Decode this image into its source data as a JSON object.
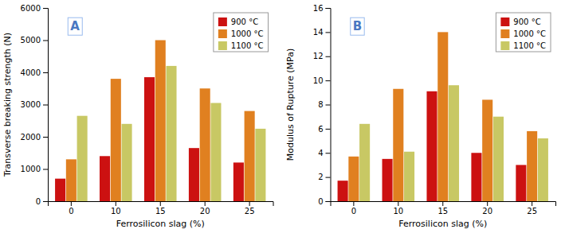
{
  "chart_data": [
    {
      "type": "bar",
      "categories": [
        0,
        10,
        15,
        20,
        25
      ],
      "series": [
        {
          "name": "900 °C",
          "color": "#cc1111",
          "values": [
            700,
            1400,
            3850,
            1650,
            1200
          ]
        },
        {
          "name": "1000 °C",
          "color": "#e08020",
          "values": [
            1300,
            3800,
            5000,
            3500,
            2800
          ]
        },
        {
          "name": "1100 °C",
          "color": "#c8c864",
          "values": [
            2650,
            2400,
            4200,
            3050,
            2250
          ]
        }
      ],
      "xlabel": "Ferrosilicon slag (%)",
      "ylabel": "Transverse breaking strength (N)",
      "ylim": [
        0,
        6000
      ],
      "yticks": [
        0,
        1000,
        2000,
        3000,
        4000,
        5000,
        6000
      ],
      "annotation": "A",
      "legend": "upper right",
      "grid": false
    },
    {
      "type": "bar",
      "categories": [
        0,
        10,
        15,
        20,
        25
      ],
      "series": [
        {
          "name": "900 °C",
          "color": "#cc1111",
          "values": [
            1.7,
            3.5,
            9.1,
            4.0,
            3.0
          ]
        },
        {
          "name": "1000 °C",
          "color": "#e08020",
          "values": [
            3.7,
            9.3,
            14.0,
            8.4,
            5.8
          ]
        },
        {
          "name": "1100 °C",
          "color": "#c8c864",
          "values": [
            6.4,
            4.1,
            9.6,
            7.0,
            5.2
          ]
        }
      ],
      "xlabel": "Ferrosilicon slag (%)",
      "ylabel": "Modulus of Rupture (MPa)",
      "ylim": [
        0,
        16
      ],
      "yticks": [
        0,
        2,
        4,
        6,
        8,
        10,
        12,
        14,
        16
      ],
      "annotation": "B",
      "legend": "upper right",
      "grid": false
    }
  ]
}
